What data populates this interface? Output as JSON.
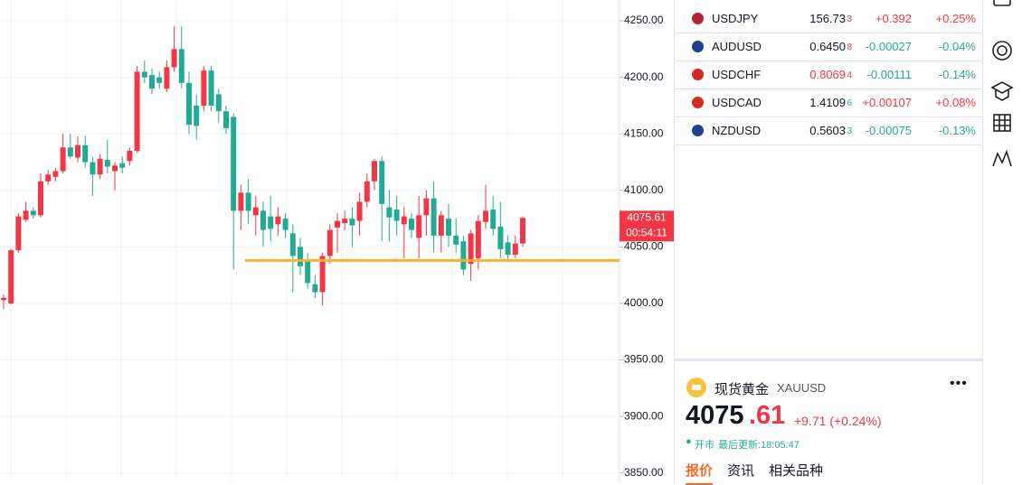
{
  "chart_data": {
    "type": "candlestick",
    "open": [
      4003,
      4000,
      4047,
      4074,
      4082,
      4078,
      4108,
      4112,
      4117,
      4138,
      4129,
      4140,
      4125,
      4114,
      4127,
      4117,
      4124,
      4126,
      4135,
      4205,
      4202,
      4200,
      4190,
      4209,
      4225,
      4195,
      4175,
      4175,
      4206,
      4185,
      4170,
      4165,
      4082,
      4098,
      4078,
      4082,
      4077,
      4070,
      4075,
      4062,
      4050,
      4038,
      4017,
      4010,
      4042,
      4067,
      4071,
      4075,
      4073,
      4090,
      4108,
      4126,
      4085,
      4083,
      4070,
      4075,
      4058,
      4078,
      4093,
      4060,
      4075,
      4060,
      4055,
      4035,
      4040,
      4072,
      4083,
      4068,
      4054,
      4043,
      4053
    ],
    "high": [
      4008,
      4048,
      4080,
      4090,
      4085,
      4115,
      4118,
      4120,
      4150,
      4150,
      4148,
      4148,
      4130,
      4132,
      4145,
      4125,
      4130,
      4138,
      4210,
      4215,
      4208,
      4205,
      4215,
      4245,
      4245,
      4205,
      4185,
      4210,
      4210,
      4190,
      4175,
      4168,
      4105,
      4110,
      4095,
      4090,
      4095,
      4085,
      4080,
      4070,
      4058,
      4045,
      4025,
      4045,
      4070,
      4080,
      4082,
      4085,
      4098,
      4115,
      4128,
      4130,
      4100,
      4095,
      4085,
      4080,
      4095,
      4100,
      4108,
      4082,
      4088,
      4075,
      4060,
      4065,
      4078,
      4105,
      4095,
      4090,
      4060,
      4060,
      4077
    ],
    "low": [
      3995,
      3999,
      4045,
      4072,
      4075,
      4076,
      4105,
      4108,
      4115,
      4128,
      4125,
      4120,
      4095,
      4110,
      4115,
      4100,
      4115,
      4122,
      4133,
      4195,
      4185,
      4190,
      4187,
      4205,
      4190,
      4150,
      4145,
      4170,
      4170,
      4160,
      4150,
      4030,
      4065,
      4070,
      4060,
      4050,
      4055,
      4060,
      4058,
      4010,
      4025,
      4013,
      4005,
      3998,
      4035,
      4045,
      4065,
      4050,
      4060,
      4085,
      4100,
      4055,
      4055,
      4060,
      4040,
      4058,
      4040,
      4060,
      4045,
      4045,
      4050,
      4045,
      4025,
      4020,
      4030,
      4066,
      4060,
      4040,
      4038,
      4040,
      4050
    ],
    "close": [
      4005,
      4047,
      4077,
      4082,
      4078,
      4108,
      4114,
      4117,
      4138,
      4130,
      4140,
      4125,
      4114,
      4128,
      4121,
      4122,
      4120,
      4135,
      4205,
      4200,
      4190,
      4195,
      4209,
      4225,
      4195,
      4158,
      4157,
      4206,
      4175,
      4170,
      4155,
      4082,
      4098,
      4082,
      4085,
      4065,
      4066,
      4077,
      4065,
      4042,
      4033,
      4018,
      4010,
      4042,
      4065,
      4073,
      4075,
      4069,
      4090,
      4108,
      4126,
      4088,
      4076,
      4073,
      4077,
      4065,
      4078,
      4093,
      4060,
      4078,
      4060,
      4052,
      4030,
      4062,
      4073,
      4082,
      4066,
      4048,
      4043,
      4053,
      4075.61
    ],
    "up_color": "#f23645",
    "down_color": "#22ab94",
    "ylim": [
      3842.6,
      4268.4
    ],
    "yticks": [
      {
        "value": 3850,
        "label": "3850.00"
      },
      {
        "value": 3900,
        "label": "3900.00"
      },
      {
        "value": 3950,
        "label": "3950.00"
      },
      {
        "value": 4000,
        "label": "4000.00"
      },
      {
        "value": 4050,
        "label": "4050.00"
      },
      {
        "value": 4100,
        "label": "4100.00"
      },
      {
        "value": 4150,
        "label": "4150.00"
      },
      {
        "value": 4200,
        "label": "4200.00"
      },
      {
        "value": 4250,
        "label": "4250.00"
      }
    ],
    "grid": true,
    "hline": {
      "value": 4038,
      "color": "#f7b42c"
    },
    "last_price": 4075.61,
    "countdown": "00:54:11"
  },
  "watchlist": [
    {
      "symbol": "USDJPY",
      "price": "156.73",
      "price_tail": "3",
      "price_color": "#131722",
      "tail_color": "#f23645",
      "change": "+0.392",
      "percent": "+0.25%",
      "change_color": "#f23645"
    },
    {
      "symbol": "AUDUSD",
      "price": "0.6450",
      "price_tail": "8",
      "price_color": "#131722",
      "tail_color": "#f23645",
      "change": "-0.00027",
      "percent": "-0.04%",
      "change_color": "#22ab94"
    },
    {
      "symbol": "USDCHF",
      "price": "0.8069",
      "price_tail": "4",
      "price_color": "#f23645",
      "tail_color": "#f23645",
      "change": "-0.00111",
      "percent": "-0.14%",
      "change_color": "#22ab94"
    },
    {
      "symbol": "USDCAD",
      "price": "1.4109",
      "price_tail": "6",
      "price_color": "#131722",
      "tail_color": "#22ab94",
      "change": "+0.00107",
      "percent": "+0.08%",
      "change_color": "#f23645"
    },
    {
      "symbol": "NZDUSD",
      "price": "0.5603",
      "price_tail": "3",
      "price_color": "#131722",
      "tail_color": "#22ab94",
      "change": "-0.00075",
      "percent": "-0.13%",
      "change_color": "#22ab94"
    }
  ],
  "quote": {
    "name": "现货黄金",
    "symbol": "XAUUSD",
    "price_int": "4075",
    "price_dec": ".61",
    "change": "+9.71 (+0.24%)",
    "status": "开市",
    "updated": "最后更新:18:05:47",
    "tabs": [
      "报价",
      "资讯",
      "相关品种"
    ]
  }
}
